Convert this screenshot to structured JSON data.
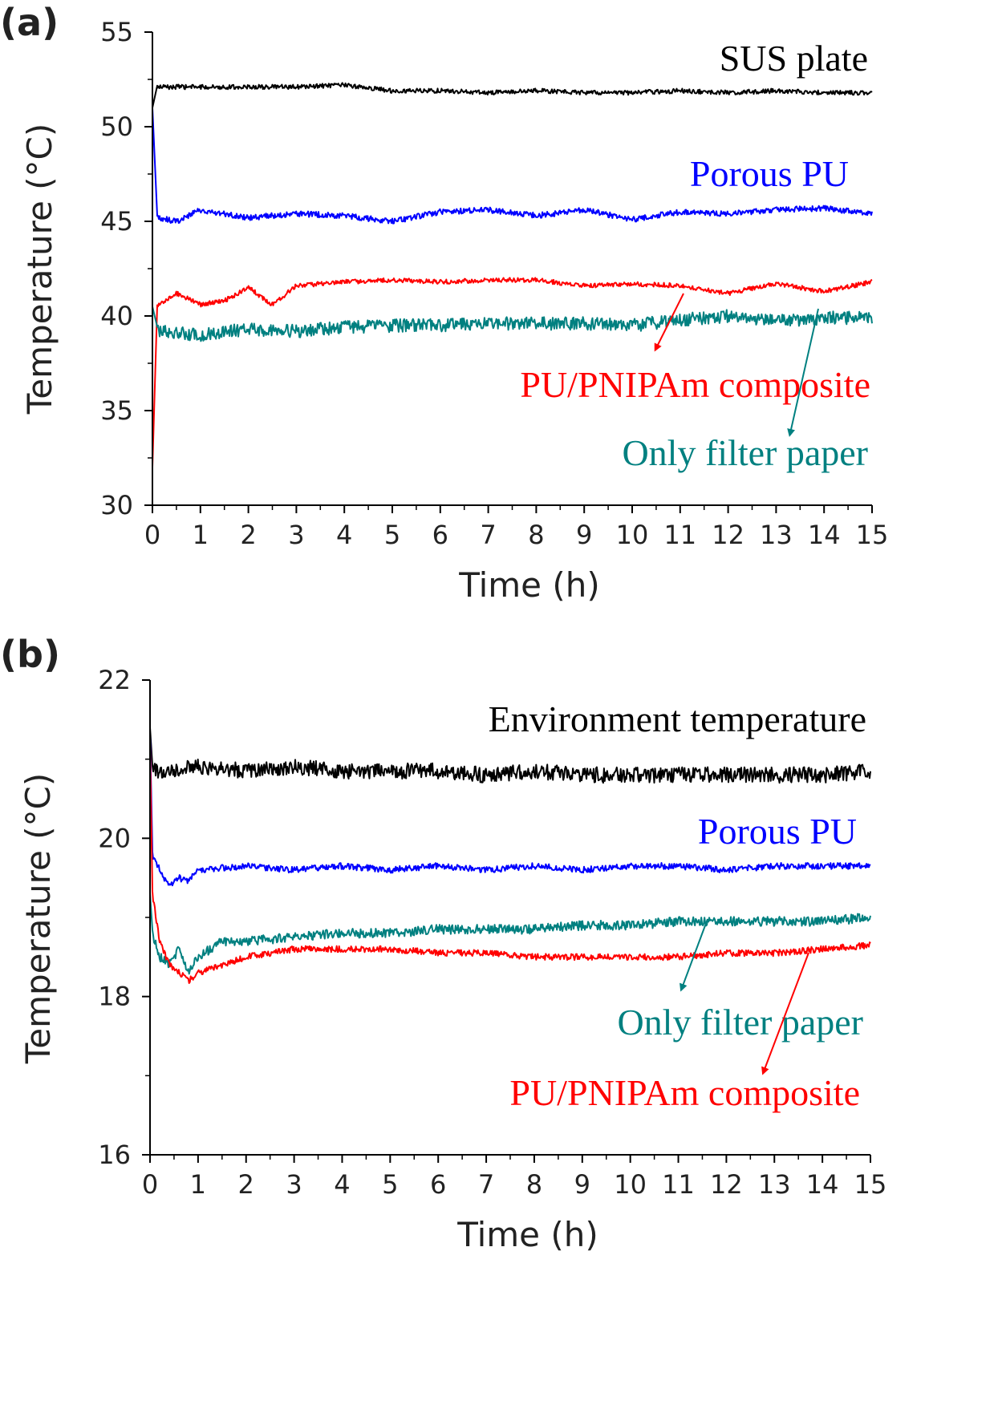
{
  "chart_data": [
    {
      "type": "line",
      "panel_label": "(a)",
      "xlabel": "Time (h)",
      "ylabel": "Temperature (°C)",
      "xlim": [
        0,
        15
      ],
      "ylim": [
        30,
        55
      ],
      "xticks": [
        0,
        1,
        2,
        3,
        4,
        5,
        6,
        7,
        8,
        9,
        10,
        11,
        12,
        13,
        14,
        15
      ],
      "yticks": [
        30,
        35,
        40,
        45,
        50,
        55
      ],
      "grid": false,
      "series": [
        {
          "name": "SUS plate",
          "color": "#000000",
          "start": 51.0,
          "x": [
            0.1,
            1,
            2,
            3,
            4,
            5,
            6,
            7,
            8,
            9,
            10,
            11,
            12,
            13,
            14,
            15
          ],
          "y": [
            52.1,
            52.1,
            52.1,
            52.1,
            52.2,
            51.9,
            51.9,
            51.8,
            51.9,
            51.8,
            51.8,
            51.9,
            51.8,
            51.9,
            51.8,
            51.8
          ],
          "noise": 0.12
        },
        {
          "name": "Porous PU",
          "color": "#0000ff",
          "start": 51.0,
          "x": [
            0.1,
            0.5,
            1,
            2,
            3,
            4,
            5,
            6,
            7,
            8,
            9,
            10,
            11,
            12,
            13,
            14,
            15
          ],
          "y": [
            45.2,
            45.0,
            45.6,
            45.2,
            45.4,
            45.3,
            45.0,
            45.5,
            45.6,
            45.3,
            45.6,
            45.1,
            45.5,
            45.4,
            45.6,
            45.7,
            45.4
          ],
          "noise": 0.15
        },
        {
          "name": "PU/PNIPAm composite",
          "color": "#ff0000",
          "start": 32.0,
          "x": [
            0.1,
            0.5,
            1,
            1.5,
            2,
            2.5,
            3,
            4,
            5,
            6,
            7,
            8,
            9,
            10,
            11,
            12,
            13,
            14,
            15
          ],
          "y": [
            40.5,
            41.2,
            40.6,
            40.8,
            41.5,
            40.6,
            41.6,
            41.8,
            41.9,
            41.8,
            41.9,
            41.9,
            41.6,
            41.7,
            41.6,
            41.2,
            41.7,
            41.3,
            41.8
          ],
          "noise": 0.12
        },
        {
          "name": "Only filter paper",
          "color": "#008080",
          "start": 40.5,
          "x": [
            0.1,
            1,
            2,
            3,
            4,
            5,
            6,
            7,
            8,
            9,
            10,
            11,
            12,
            13,
            14,
            15
          ],
          "y": [
            39.2,
            39.0,
            39.3,
            39.2,
            39.4,
            39.5,
            39.5,
            39.6,
            39.6,
            39.6,
            39.5,
            39.8,
            40.0,
            39.7,
            39.9,
            39.9
          ],
          "noise": 0.35
        }
      ],
      "annotations": [
        {
          "text": "SUS plate",
          "color": "#000000"
        },
        {
          "text": "Porous PU",
          "color": "#0000ff"
        },
        {
          "text": "PU/PNIPAm composite",
          "color": "#ff0000"
        },
        {
          "text": "Only filter paper",
          "color": "#008080"
        }
      ]
    },
    {
      "type": "line",
      "panel_label": "(b)",
      "xlabel": "Time (h)",
      "ylabel": "Temperature (°C)",
      "xlim": [
        0,
        15
      ],
      "ylim": [
        16,
        22
      ],
      "xticks": [
        0,
        1,
        2,
        3,
        4,
        5,
        6,
        7,
        8,
        9,
        10,
        11,
        12,
        13,
        14,
        15
      ],
      "yticks": [
        16,
        18,
        20,
        22
      ],
      "grid": false,
      "series": [
        {
          "name": "Environment temperature",
          "color": "#000000",
          "start": 21.4,
          "x": [
            0.05,
            1,
            2,
            3,
            4,
            5,
            6,
            7,
            8,
            9,
            10,
            11,
            12,
            13,
            14,
            15
          ],
          "y": [
            20.85,
            20.9,
            20.85,
            20.9,
            20.85,
            20.85,
            20.85,
            20.8,
            20.85,
            20.8,
            20.8,
            20.8,
            20.8,
            20.8,
            20.8,
            20.85
          ],
          "noise": 0.1
        },
        {
          "name": "Porous PU",
          "color": "#0000ff",
          "start": 21.3,
          "x": [
            0.05,
            0.2,
            0.4,
            0.6,
            0.8,
            1,
            2,
            3,
            4,
            5,
            6,
            7,
            8,
            9,
            10,
            11,
            12,
            13,
            14,
            15
          ],
          "y": [
            19.8,
            19.6,
            19.4,
            19.5,
            19.45,
            19.6,
            19.65,
            19.6,
            19.65,
            19.6,
            19.65,
            19.6,
            19.65,
            19.6,
            19.65,
            19.65,
            19.6,
            19.65,
            19.65,
            19.65
          ],
          "noise": 0.04
        },
        {
          "name": "Only filter paper",
          "color": "#008080",
          "start": 19.3,
          "x": [
            0.05,
            0.2,
            0.4,
            0.6,
            0.8,
            1,
            1.5,
            2,
            3,
            4,
            5,
            6,
            7,
            8,
            9,
            10,
            11,
            12,
            13,
            14,
            15
          ],
          "y": [
            18.8,
            18.5,
            18.4,
            18.6,
            18.3,
            18.5,
            18.7,
            18.7,
            18.75,
            18.8,
            18.8,
            18.85,
            18.85,
            18.85,
            18.9,
            18.9,
            18.95,
            18.95,
            18.95,
            18.95,
            19.0
          ],
          "noise": 0.06
        },
        {
          "name": "PU/PNIPAm composite",
          "color": "#ff0000",
          "start": 21.2,
          "x": [
            0.05,
            0.2,
            0.4,
            0.6,
            0.8,
            1,
            1.5,
            2,
            2.5,
            3,
            4,
            5,
            6,
            7,
            8,
            9,
            10,
            11,
            12,
            13,
            14,
            15
          ],
          "y": [
            19.3,
            18.7,
            18.4,
            18.3,
            18.2,
            18.3,
            18.4,
            18.5,
            18.55,
            18.6,
            18.6,
            18.6,
            18.55,
            18.55,
            18.5,
            18.5,
            18.5,
            18.5,
            18.55,
            18.55,
            18.6,
            18.65
          ],
          "noise": 0.04
        }
      ],
      "annotations": [
        {
          "text": "Environment temperature",
          "color": "#000000"
        },
        {
          "text": "Porous PU",
          "color": "#0000ff"
        },
        {
          "text": "Only filter paper",
          "color": "#008080"
        },
        {
          "text": "PU/PNIPAm composite",
          "color": "#ff0000"
        }
      ]
    }
  ]
}
